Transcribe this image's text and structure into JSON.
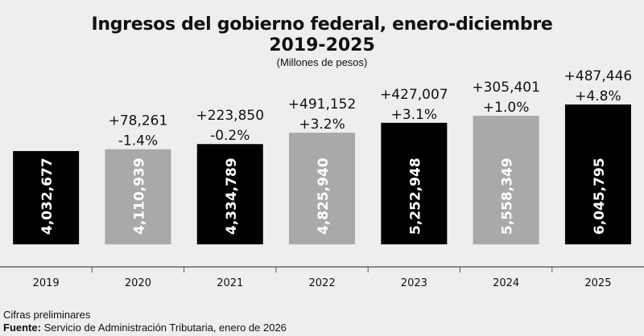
{
  "chart_data": {
    "type": "bar",
    "title": "Ingresos del gobierno federal, enero-diciembre",
    "subtitle": "2019-2025",
    "units": "(Millones de pesos)",
    "xlabel": "",
    "ylabel": "",
    "ylim": [
      0,
      6100000
    ],
    "grid": false,
    "categories": [
      "2019",
      "2020",
      "2021",
      "2022",
      "2023",
      "2024",
      "2025"
    ],
    "values": [
      4032677,
      4110939,
      4334789,
      4825940,
      5252948,
      5558349,
      6045795
    ],
    "value_labels": [
      "4,032,677",
      "4,110,939",
      "4,334,789",
      "4,825,940",
      "5,252,948",
      "5,558,349",
      "6,045,795"
    ],
    "change_abs": [
      null,
      "+78,261",
      "+223,850",
      "+491,152",
      "+427,007",
      "+305,401",
      "+487,446"
    ],
    "change_pct": [
      null,
      "-1.4%",
      "-0.2%",
      "+3.2%",
      "+3.1%",
      "+1.0%",
      "+4.8%"
    ],
    "bar_colors": [
      "#000000",
      "#a9a9a9",
      "#000000",
      "#a9a9a9",
      "#000000",
      "#a9a9a9",
      "#000000"
    ]
  },
  "footer": {
    "note": "Cifras preliminares",
    "source_label": "Fuente:",
    "source_text": " Servicio de Administración Tributaria, enero de 2026"
  }
}
